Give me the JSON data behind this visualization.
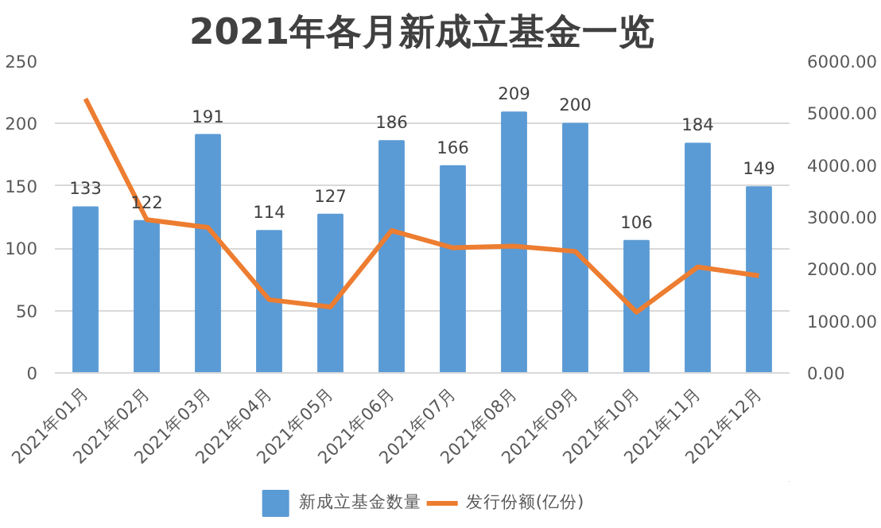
{
  "chart_data": {
    "type": "bar",
    "title": "2021年各月新成立基金一览",
    "categories": [
      "2021年01月",
      "2021年02月",
      "2021年03月",
      "2021年04月",
      "2021年05月",
      "2021年06月",
      "2021年07月",
      "2021年08月",
      "2021年09月",
      "2021年10月",
      "2021年11月",
      "2021年12月"
    ],
    "series": [
      {
        "name": "新成立基金数量",
        "color": "#5b9bd5",
        "values": [
          133,
          122,
          191,
          114,
          127,
          186,
          166,
          209,
          200,
          106,
          184,
          149
        ],
        "value_labels": [
          "133",
          "122",
          "191",
          "114",
          "127",
          "186",
          "166",
          "209",
          "200",
          "106",
          "184",
          "149"
        ]
      },
      {
        "name": "发行份额(亿份)",
        "type": "line",
        "axis": "y2",
        "color": "#ed7d31",
        "values": [
          5280,
          2950,
          2800,
          1410,
          1270,
          2740,
          2410,
          2440,
          2340,
          1170,
          2040,
          1870
        ]
      }
    ],
    "ylim": [
      0,
      250
    ],
    "yticks": [
      0,
      50,
      100,
      150,
      200,
      250
    ],
    "y2lim": [
      0,
      6000
    ],
    "y2ticks": [
      {
        "value": 0,
        "label": "0.00"
      },
      {
        "value": 1000,
        "label": "1000.00"
      },
      {
        "value": 2000,
        "label": "2000.00"
      },
      {
        "value": 3000,
        "label": "3000.00"
      },
      {
        "value": 4000,
        "label": "4000.00"
      },
      {
        "value": 5000,
        "label": "5000.00"
      },
      {
        "value": 6000,
        "label": "6000.00"
      }
    ],
    "grid": "y",
    "legend": "bottom",
    "line_style": "solid"
  }
}
